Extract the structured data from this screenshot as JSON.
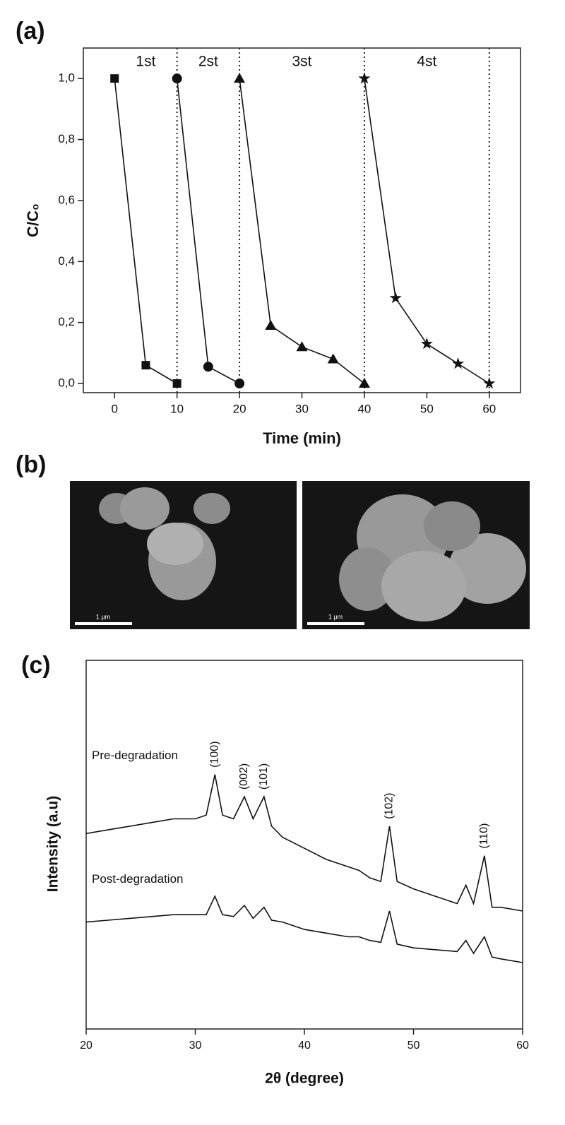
{
  "chart_data": [
    {
      "type": "line",
      "panel_label": "(a)",
      "x_label": "Time (min)",
      "y_label": "C/C₀",
      "xlim": [
        -5,
        65
      ],
      "ylim": [
        -0.03,
        1.1
      ],
      "xticks": [
        0,
        10,
        20,
        30,
        40,
        50,
        60
      ],
      "yticks": [
        {
          "value": 0,
          "label": "0,0"
        },
        {
          "value": 0.2,
          "label": "0,2"
        },
        {
          "value": 0.4,
          "label": "0,4"
        },
        {
          "value": 0.6,
          "label": "0,6"
        },
        {
          "value": 0.8,
          "label": "0,8"
        },
        {
          "value": 1,
          "label": "1,0"
        }
      ],
      "cycle_boundaries": [
        10,
        20,
        40,
        60
      ],
      "cycle_labels": [
        "1st",
        "2st",
        "3st",
        "4st"
      ],
      "series": [
        {
          "marker": "square",
          "color": "#111111",
          "x": [
            0,
            5,
            10
          ],
          "values": [
            1.0,
            0.06,
            0.0
          ]
        },
        {
          "marker": "circle",
          "color": "#111111",
          "x": [
            10,
            15,
            20
          ],
          "values": [
            1.0,
            0.055,
            0.0
          ]
        },
        {
          "marker": "triangle",
          "color": "#111111",
          "x": [
            20,
            25,
            30,
            35,
            40
          ],
          "values": [
            1.0,
            0.19,
            0.12,
            0.08,
            0.0
          ]
        },
        {
          "marker": "star",
          "color": "#111111",
          "x": [
            40,
            45,
            50,
            55,
            60
          ],
          "values": [
            1.0,
            0.28,
            0.13,
            0.065,
            0.0
          ]
        }
      ]
    },
    {
      "type": "line",
      "panel_label": "(c)",
      "x_label": "2θ (degree)",
      "y_label": "Intensity (a.u)",
      "xlim": [
        20,
        60
      ],
      "ylim": [
        0,
        100
      ],
      "xticks": [
        20,
        30,
        40,
        50,
        60
      ],
      "x": [
        20,
        22,
        24,
        26,
        28,
        30,
        31,
        31.8,
        32.5,
        33.5,
        34.5,
        35.3,
        36.3,
        37,
        38,
        40,
        42,
        44,
        45,
        46,
        47,
        47.8,
        48.5,
        50,
        52,
        54,
        54.8,
        55.5,
        56.5,
        57.2,
        58,
        60
      ],
      "series": [
        {
          "name": "Pre-degradation",
          "color": "#111111",
          "values": [
            53,
            54,
            55,
            56,
            57,
            57,
            58,
            69,
            58,
            57,
            63,
            57,
            63,
            55,
            52,
            49,
            46,
            44,
            43,
            41,
            40,
            55,
            40,
            38,
            36,
            34,
            39,
            34,
            47,
            33,
            33,
            32
          ]
        },
        {
          "name": "Post-degradation",
          "color": "#111111",
          "values": [
            29,
            29.5,
            30,
            30.5,
            31,
            31,
            31,
            36,
            31,
            30.5,
            33.5,
            30,
            33,
            29.5,
            29,
            27,
            26,
            25,
            25,
            24,
            23.5,
            32,
            23,
            22,
            21.5,
            21,
            24,
            20.5,
            25,
            19.5,
            19,
            18
          ]
        }
      ],
      "annotations": [
        {
          "text": "(100)",
          "x": 31.8
        },
        {
          "text": "(002)",
          "x": 34.5
        },
        {
          "text": "(101)",
          "x": 36.3
        },
        {
          "text": "(102)",
          "x": 47.8
        },
        {
          "text": "(110)",
          "x": 56.5
        }
      ]
    }
  ],
  "panel_b": {
    "panel_label": "(b)",
    "images": [
      {
        "scale_label": "1 µm"
      },
      {
        "scale_label": "1 µm"
      }
    ]
  }
}
